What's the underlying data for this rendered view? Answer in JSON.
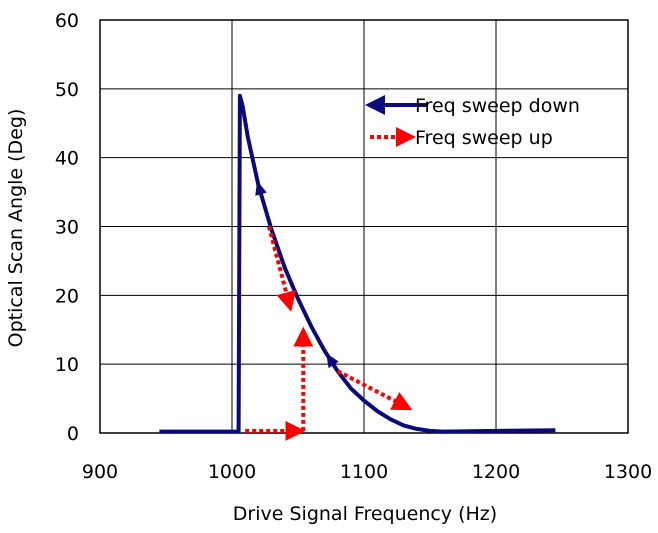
{
  "chart_data": {
    "type": "line",
    "xlabel": "Drive Signal Frequency (Hz)",
    "ylabel": "Optical Scan Angle (Deg)",
    "xlim": [
      900,
      1300
    ],
    "ylim": [
      0,
      60
    ],
    "x_ticks": [
      "900",
      "1000",
      "1100",
      "1200",
      "1300"
    ],
    "y_ticks": [
      "0",
      "10",
      "20",
      "30",
      "40",
      "50",
      "60"
    ],
    "grid": true,
    "legend_position": "top-right",
    "series": [
      {
        "name": "Freq sweep down",
        "color": "#0a0a7a",
        "style": "solid",
        "x": [
          945,
          1005,
          1006,
          1008,
          1012,
          1020,
          1030,
          1040,
          1050,
          1060,
          1070,
          1080,
          1090,
          1100,
          1110,
          1120,
          1130,
          1140,
          1150,
          1160,
          1200,
          1245
        ],
        "y": [
          0.2,
          0.2,
          49,
          47.5,
          43,
          36,
          29.5,
          24,
          19.5,
          15.5,
          12,
          9,
          6.5,
          4.7,
          3.2,
          2.0,
          1.1,
          0.6,
          0.3,
          0.2,
          0.3,
          0.4
        ],
        "direction_arrows": [
          {
            "x": 1022,
            "y": 32
          },
          {
            "x": 1077,
            "y": 9.5
          }
        ]
      },
      {
        "name": "Freq sweep up",
        "color": "#ff0000",
        "style": "dotted",
        "segments": [
          {
            "x": [
              1010,
              1048
            ],
            "y": [
              0.3,
              0.3
            ]
          },
          {
            "x": [
              1054,
              1054
            ],
            "y": [
              0.3,
              14
            ]
          },
          {
            "x": [
              1080,
              1130
            ],
            "y": [
              9,
              4
            ]
          },
          {
            "x": [
              1028,
              1043
            ],
            "y": [
              30,
              19
            ]
          }
        ]
      }
    ]
  }
}
